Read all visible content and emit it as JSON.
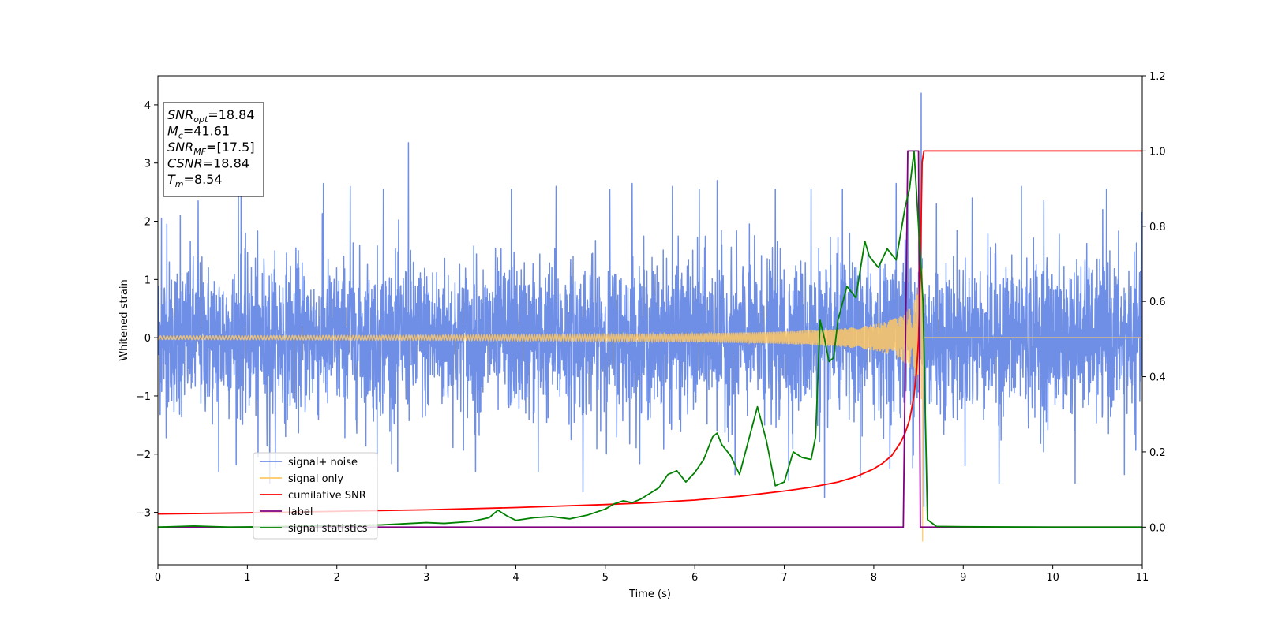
{
  "chart_data": {
    "type": "line",
    "xlabel": "Time (s)",
    "ylabel_left": "Whitened strain",
    "ylabel_right": "",
    "xlim": [
      0,
      11
    ],
    "ylim_left": [
      -3.9,
      4.5
    ],
    "ylim_right": [
      -0.1,
      1.2
    ],
    "x_ticks": [
      0,
      1,
      2,
      3,
      4,
      5,
      6,
      7,
      8,
      9,
      10,
      11
    ],
    "y_ticks_left": [
      -3,
      -2,
      -1,
      0,
      1,
      2,
      3,
      4
    ],
    "y_ticks_right": [
      0.0,
      0.2,
      0.4,
      0.6,
      0.8,
      1.0,
      1.2
    ],
    "grid": false,
    "legend_position": "lower-left",
    "colors": {
      "signal_noise": "#6f8fe6",
      "signal_only": "#ffc864",
      "cumulative_snr": "#ff0000",
      "label": "#800080",
      "signal_statistics": "#008000"
    },
    "info_box": [
      {
        "var": "SNR",
        "sub": "opt",
        "value": "=18.84"
      },
      {
        "var": "M",
        "sub": "c",
        "value": "=41.61"
      },
      {
        "var": "SNR",
        "sub": "MF",
        "value": "=[17.5]"
      },
      {
        "var": "CSNR",
        "sub": "",
        "value": "=18.84"
      },
      {
        "var": "T",
        "sub": "m",
        "value": "=8.54"
      }
    ],
    "series": [
      {
        "name": "signal+ noise",
        "axis": "left",
        "style": "noise",
        "amplitude": 1.05,
        "spikes": [
          [
            0.04,
            2.05
          ],
          [
            0.1,
            1.95
          ],
          [
            0.25,
            2.1
          ],
          [
            0.45,
            2.35
          ],
          [
            0.68,
            -2.3
          ],
          [
            0.9,
            2.45
          ],
          [
            0.93,
            2.95
          ],
          [
            1.12,
            -2.05
          ],
          [
            1.25,
            -2.5
          ],
          [
            1.85,
            2.65
          ],
          [
            2.15,
            2.6
          ],
          [
            2.45,
            -2.3
          ],
          [
            2.52,
            2.55
          ],
          [
            2.68,
            -2.3
          ],
          [
            2.8,
            3.35
          ],
          [
            3.55,
            -2.3
          ],
          [
            3.95,
            2.55
          ],
          [
            4.25,
            -2.3
          ],
          [
            4.45,
            2.6
          ],
          [
            4.75,
            -2.65
          ],
          [
            5.05,
            2.55
          ],
          [
            5.3,
            2.65
          ],
          [
            5.75,
            2.6
          ],
          [
            6.05,
            2.55
          ],
          [
            6.25,
            2.7
          ],
          [
            6.45,
            -2.35
          ],
          [
            6.9,
            2.55
          ],
          [
            7.05,
            -2.45
          ],
          [
            7.3,
            2.55
          ],
          [
            7.45,
            -2.75
          ],
          [
            7.65,
            2.55
          ],
          [
            7.85,
            -2.4
          ],
          [
            8.25,
            2.65
          ],
          [
            8.38,
            2.45
          ],
          [
            8.53,
            4.2
          ],
          [
            8.56,
            -2.9
          ],
          [
            8.7,
            2.3
          ],
          [
            9.1,
            2.4
          ],
          [
            9.4,
            -2.5
          ],
          [
            9.65,
            2.6
          ],
          [
            9.9,
            2.35
          ],
          [
            10.25,
            -2.5
          ],
          [
            10.6,
            2.55
          ],
          [
            10.8,
            -2.35
          ]
        ]
      },
      {
        "name": "signal only",
        "axis": "left",
        "style": "chirp",
        "merger_time": 8.54,
        "min_drop": -3.5
      },
      {
        "name": "cumilative SNR",
        "axis": "right",
        "x": [
          0,
          1,
          2,
          3,
          4,
          5,
          5.5,
          6,
          6.5,
          7,
          7.3,
          7.6,
          7.8,
          8.0,
          8.1,
          8.2,
          8.3,
          8.35,
          8.4,
          8.45,
          8.48,
          8.5,
          8.52,
          8.54,
          8.56,
          9,
          10,
          11
        ],
        "y": [
          0.035,
          0.038,
          0.042,
          0.046,
          0.052,
          0.06,
          0.065,
          0.072,
          0.082,
          0.096,
          0.106,
          0.12,
          0.134,
          0.155,
          0.17,
          0.19,
          0.225,
          0.25,
          0.285,
          0.35,
          0.42,
          0.5,
          0.68,
          0.97,
          1.0,
          1.0,
          1.0,
          1.0
        ]
      },
      {
        "name": "label",
        "axis": "right",
        "x": [
          0,
          8.33,
          8.38,
          8.5,
          8.52,
          8.55,
          11
        ],
        "y": [
          0,
          0,
          1,
          1,
          0,
          0,
          0
        ]
      },
      {
        "name": "signal statistics",
        "axis": "right",
        "x": [
          0,
          0.4,
          0.8,
          1.5,
          2.0,
          2.5,
          3.0,
          3.2,
          3.5,
          3.7,
          3.8,
          3.9,
          4.0,
          4.2,
          4.4,
          4.6,
          4.8,
          5.0,
          5.1,
          5.2,
          5.3,
          5.4,
          5.5,
          5.6,
          5.7,
          5.8,
          5.9,
          6.0,
          6.1,
          6.2,
          6.25,
          6.3,
          6.4,
          6.5,
          6.6,
          6.7,
          6.8,
          6.9,
          7.0,
          7.1,
          7.2,
          7.3,
          7.35,
          7.4,
          7.45,
          7.5,
          7.55,
          7.6,
          7.7,
          7.8,
          7.9,
          7.95,
          8.05,
          8.15,
          8.25,
          8.35,
          8.4,
          8.45,
          8.5,
          8.55,
          8.6,
          8.7,
          9.0,
          10.0,
          11.0
        ],
        "y": [
          0,
          0.003,
          0.0,
          0.002,
          0.004,
          0.006,
          0.012,
          0.01,
          0.015,
          0.025,
          0.045,
          0.03,
          0.018,
          0.025,
          0.028,
          0.022,
          0.032,
          0.048,
          0.062,
          0.07,
          0.065,
          0.075,
          0.09,
          0.105,
          0.14,
          0.15,
          0.12,
          0.145,
          0.18,
          0.24,
          0.25,
          0.22,
          0.19,
          0.14,
          0.23,
          0.32,
          0.23,
          0.11,
          0.12,
          0.2,
          0.185,
          0.18,
          0.24,
          0.55,
          0.5,
          0.44,
          0.45,
          0.55,
          0.64,
          0.61,
          0.76,
          0.72,
          0.69,
          0.74,
          0.71,
          0.85,
          0.9,
          1.0,
          0.8,
          0.6,
          0.02,
          0.002,
          0.001,
          0.0,
          0.0
        ]
      }
    ]
  }
}
